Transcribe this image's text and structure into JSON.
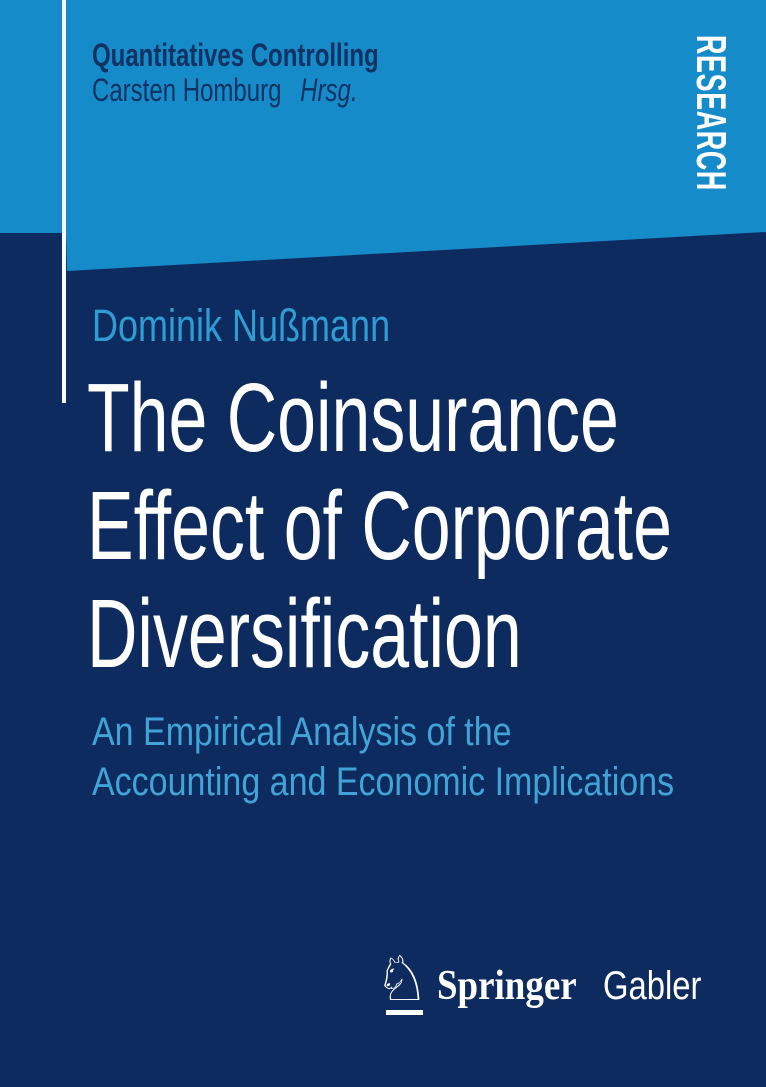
{
  "cover": {
    "series": {
      "title": "Quantitatives Controlling",
      "editor": "Carsten Homburg",
      "editor_suffix": "Hrsg."
    },
    "research_banner": "RESEARCH",
    "author": "Dominik Nußmann",
    "title_lines": [
      "The Coinsurance",
      "Effect of Corporate",
      "Diversification"
    ],
    "subtitle_lines": [
      "An Empirical Analysis of the",
      "Accounting and Economic Implications"
    ],
    "publisher": {
      "icon_name": "springer-horse-icon",
      "icon_glyph": "♘",
      "brand": "Springer",
      "imprint": "Gabler"
    },
    "colors": {
      "blue": "#168bca",
      "navy": "#0d2b5e",
      "headerNavy": "#123261",
      "lightBlueAuthor": "#2f9dd4",
      "lightBlueSub": "#41a3d6",
      "white": "#ffffff"
    }
  }
}
